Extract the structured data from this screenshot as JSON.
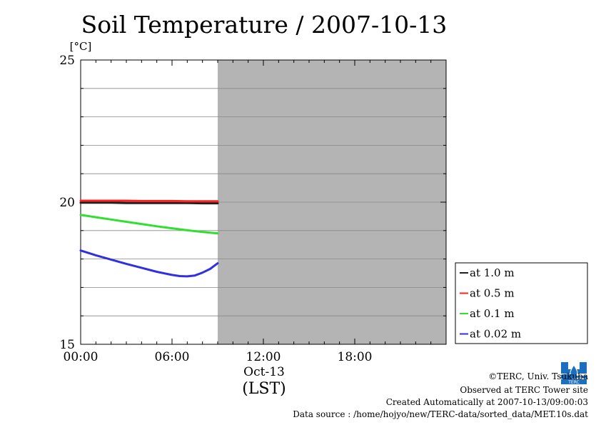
{
  "chart_data": {
    "type": "line",
    "title": "Soil Temperature / 2007-10-13",
    "ylabel": "[°C]",
    "ylim": [
      15,
      25
    ],
    "y_ticks": [
      15,
      20,
      25
    ],
    "y_gridlines": [
      16,
      17,
      18,
      19,
      21,
      22,
      23,
      24
    ],
    "x_ticks": [
      "00:00",
      "06:00",
      "12:00",
      "18:00"
    ],
    "x_tick_hours": [
      0,
      6,
      12,
      18
    ],
    "xlim_hours": [
      0,
      24
    ],
    "x_date_label": "Oct-13",
    "xlabel": "(LST)",
    "no_data_from_hour": 9,
    "legend_position": "right",
    "series": [
      {
        "name": "at 1.0 m",
        "color": "#202020",
        "x": [
          0,
          1,
          2,
          3,
          4,
          5,
          6,
          7,
          8,
          9
        ],
        "y": [
          19.98,
          19.98,
          19.98,
          19.97,
          19.97,
          19.97,
          19.97,
          19.97,
          19.96,
          19.96
        ]
      },
      {
        "name": "at 0.5 m",
        "color": "#ff2020",
        "x": [
          0,
          1,
          2,
          3,
          4,
          5,
          6,
          7,
          8,
          9
        ],
        "y": [
          20.05,
          20.05,
          20.05,
          20.05,
          20.04,
          20.04,
          20.04,
          20.03,
          20.03,
          20.03
        ]
      },
      {
        "name": "at 0.1 m",
        "color": "#30e030",
        "x": [
          0,
          1,
          2,
          3,
          4,
          5,
          6,
          7,
          8,
          9
        ],
        "y": [
          19.55,
          19.47,
          19.39,
          19.31,
          19.23,
          19.15,
          19.08,
          19.01,
          18.95,
          18.9
        ]
      },
      {
        "name": "at 0.02 m",
        "color": "#3030e0",
        "x": [
          0,
          1,
          2,
          3,
          4,
          5,
          6,
          6.5,
          7,
          7.5,
          8,
          8.5,
          9
        ],
        "y": [
          18.3,
          18.13,
          17.98,
          17.83,
          17.69,
          17.55,
          17.44,
          17.4,
          17.39,
          17.42,
          17.52,
          17.65,
          17.85
        ]
      }
    ]
  },
  "footer": {
    "copyright": "©TERC, Univ. Tsukuba",
    "site": "Observed at TERC Tower site",
    "created": "Created Automatically at 2007-10-13/09:00:03",
    "source": "Data source : /home/hojyo/new/TERC-data/sorted_data/MET.10s.dat"
  },
  "logo_icon": "terc-logo-icon"
}
